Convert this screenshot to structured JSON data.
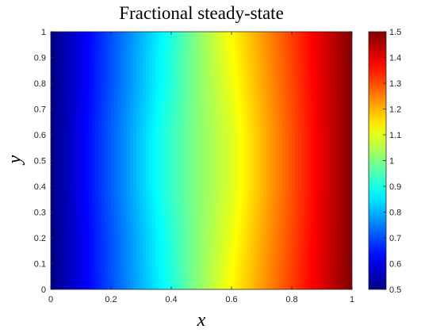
{
  "chart_data": {
    "type": "heatmap",
    "title": "Fractional steady-state",
    "xlabel": "x",
    "ylabel": "y",
    "xlim": [
      0,
      1
    ],
    "ylim": [
      0,
      1
    ],
    "x_ticks": [
      "0",
      "0.2",
      "0.4",
      "0.6",
      "0.8",
      "1"
    ],
    "y_ticks": [
      "0",
      "0.1",
      "0.2",
      "0.3",
      "0.4",
      "0.5",
      "0.6",
      "0.7",
      "0.8",
      "0.9",
      "1"
    ],
    "colorbar": {
      "range": [
        0.5,
        1.5
      ],
      "ticks": [
        "0.5",
        "0.6",
        "0.7",
        "0.8",
        "0.9",
        "1",
        "1.1",
        "1.2",
        "1.3",
        "1.4",
        "1.5"
      ],
      "colormap": "jet"
    },
    "y_samples": [
      0,
      0.1,
      0.2,
      0.3,
      0.4,
      0.5,
      0.6,
      0.7,
      0.8,
      0.9,
      1
    ],
    "contours": [
      {
        "level": 0.9,
        "x": [
          0.4,
          0.39,
          0.39,
          0.38,
          0.37,
          0.37,
          0.37,
          0.38,
          0.39,
          0.39,
          0.4
        ]
      },
      {
        "level": 1.0,
        "x": [
          0.48,
          0.48,
          0.48,
          0.48,
          0.48,
          0.48,
          0.48,
          0.48,
          0.48,
          0.48,
          0.48
        ]
      },
      {
        "level": 1.1,
        "x": [
          0.57,
          0.58,
          0.59,
          0.6,
          0.61,
          0.61,
          0.61,
          0.6,
          0.59,
          0.58,
          0.57
        ]
      }
    ],
    "grid": false,
    "colorbar_position": "right"
  }
}
